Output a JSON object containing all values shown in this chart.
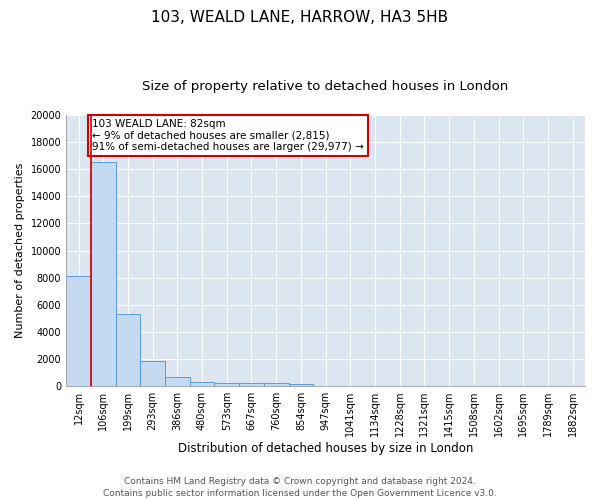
{
  "title1": "103, WEALD LANE, HARROW, HA3 5HB",
  "title2": "Size of property relative to detached houses in London",
  "xlabel": "Distribution of detached houses by size in London",
  "ylabel": "Number of detached properties",
  "categories": [
    "12sqm",
    "106sqm",
    "199sqm",
    "293sqm",
    "386sqm",
    "480sqm",
    "573sqm",
    "667sqm",
    "760sqm",
    "854sqm",
    "947sqm",
    "1041sqm",
    "1134sqm",
    "1228sqm",
    "1321sqm",
    "1415sqm",
    "1508sqm",
    "1602sqm",
    "1695sqm",
    "1789sqm",
    "1882sqm"
  ],
  "values": [
    8100,
    16500,
    5300,
    1850,
    700,
    300,
    220,
    200,
    200,
    170,
    0,
    0,
    0,
    0,
    0,
    0,
    0,
    0,
    0,
    0,
    0
  ],
  "bar_color": "#c5d9f1",
  "bar_edge_color": "#5b9bd5",
  "background_color": "#dce6f1",
  "grid_color": "#ffffff",
  "annotation_text": "103 WEALD LANE: 82sqm\n← 9% of detached houses are smaller (2,815)\n91% of semi-detached houses are larger (29,977) →",
  "annotation_box_color": "#ffffff",
  "annotation_box_edge": "#cc0000",
  "marker_line_color": "#cc0000",
  "ylim": [
    0,
    20000
  ],
  "yticks": [
    0,
    2000,
    4000,
    6000,
    8000,
    10000,
    12000,
    14000,
    16000,
    18000,
    20000
  ],
  "footer": "Contains HM Land Registry data © Crown copyright and database right 2024.\nContains public sector information licensed under the Open Government Licence v3.0.",
  "title1_fontsize": 11,
  "title2_fontsize": 9.5,
  "xlabel_fontsize": 8.5,
  "ylabel_fontsize": 8,
  "tick_fontsize": 7,
  "annotation_fontsize": 7.5,
  "footer_fontsize": 6.5
}
